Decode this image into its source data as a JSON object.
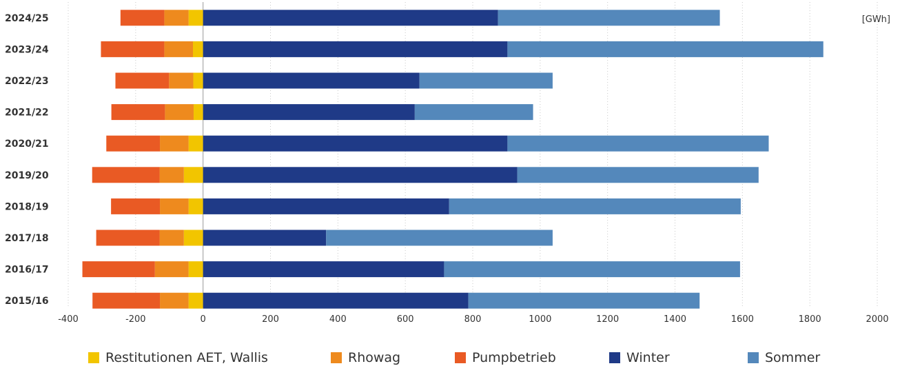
{
  "chart_data": {
    "type": "bar",
    "orientation": "horizontal",
    "stacked": true,
    "unit": "[GWh]",
    "categories": [
      "2024/25",
      "2023/24",
      "2022/23",
      "2021/22",
      "2020/21",
      "2019/20",
      "2018/19",
      "2017/18",
      "2016/17",
      "2015/16"
    ],
    "series": [
      {
        "name": "Restitutionen AET, Wallis",
        "color": "#f2c500",
        "values": [
          -43,
          -30,
          -29,
          -28,
          -43,
          -57,
          -43,
          -57,
          -43,
          -43
        ]
      },
      {
        "name": "Rhowag",
        "color": "#ee8a1e",
        "values": [
          -72,
          -85,
          -72,
          -85,
          -85,
          -72,
          -85,
          -72,
          -100,
          -85
        ]
      },
      {
        "name": "Pumpbetrieb",
        "color": "#e95a24",
        "values": [
          -130,
          -188,
          -159,
          -159,
          -159,
          -200,
          -145,
          -188,
          -215,
          -200
        ]
      },
      {
        "name": "Winter",
        "color": "#1f3a87",
        "values": [
          875,
          903,
          642,
          628,
          903,
          932,
          730,
          365,
          715,
          787
        ]
      },
      {
        "name": "Sommer",
        "color": "#5488bb",
        "values": [
          658,
          937,
          395,
          351,
          775,
          716,
          865,
          672,
          878,
          686
        ]
      }
    ],
    "xlim": [
      -400,
      2000
    ],
    "xticks": [
      -400,
      -200,
      0,
      200,
      400,
      600,
      800,
      1000,
      1200,
      1400,
      1600,
      1800,
      2000
    ],
    "grid": true,
    "legend_position": "bottom"
  }
}
